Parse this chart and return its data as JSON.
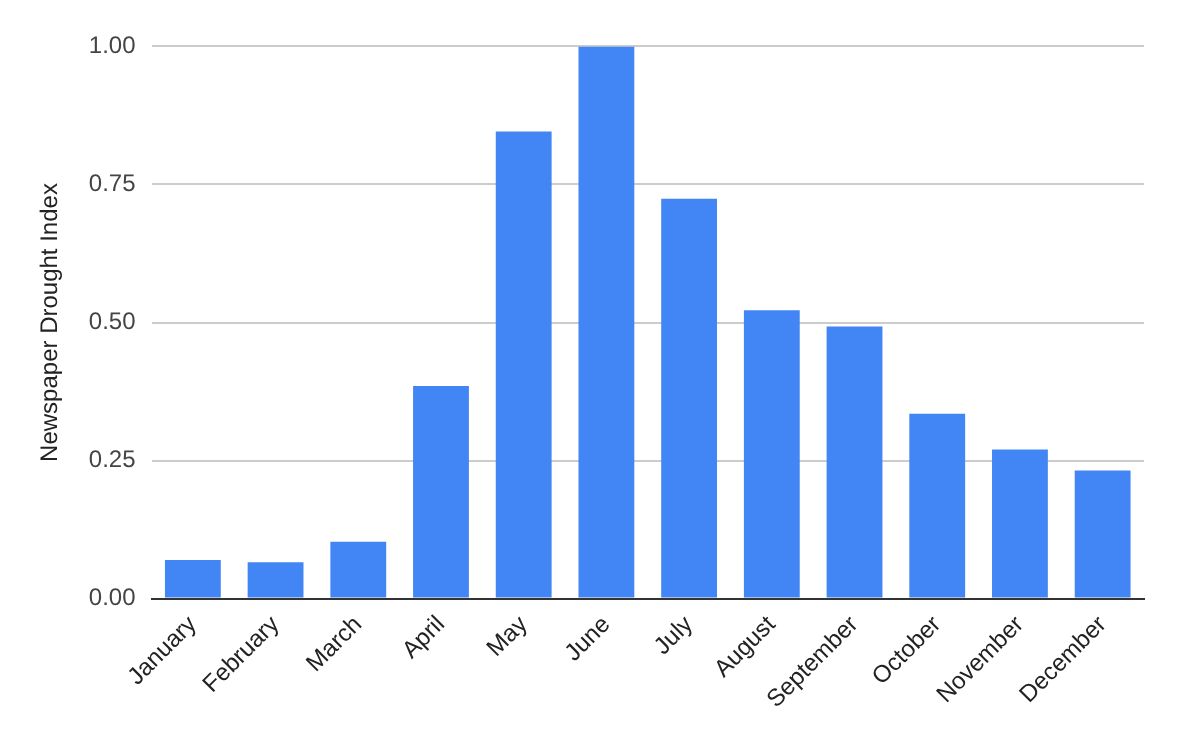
{
  "chart_data": {
    "type": "bar",
    "ylabel": "Newspaper Drought Index",
    "categories": [
      "January",
      "February",
      "March",
      "April",
      "May",
      "June",
      "July",
      "August",
      "September",
      "October",
      "November",
      "December"
    ],
    "values": [
      0.07,
      0.066,
      0.103,
      0.385,
      0.846,
      1.0,
      0.724,
      0.522,
      0.493,
      0.335,
      0.27,
      0.232
    ],
    "color": "#4285f4",
    "ylim": [
      0,
      1
    ],
    "yticks": [
      {
        "value": 0,
        "label": "0.00"
      },
      {
        "value": 0.25,
        "label": "0.25"
      },
      {
        "value": 0.5,
        "label": "0.50"
      },
      {
        "value": 0.75,
        "label": "0.75"
      },
      {
        "value": 1,
        "label": "1.00"
      }
    ],
    "grid": "y"
  }
}
